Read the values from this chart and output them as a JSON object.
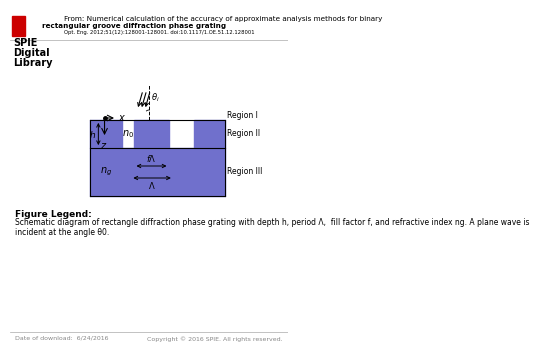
{
  "title_from": "From: Numerical calculation of the accuracy of approximate analysis methods for binary",
  "title_line2": "rectangular groove diffraction phase grating",
  "title_ref": "Opt. Eng. 2012;51(12):128001-128001. doi:10.1117/1.OE.51.12.128001",
  "grating_color": "#7070cc",
  "background_color": "#ffffff",
  "region1_label": "Region I",
  "region2_label": "Region II",
  "region3_label": "Region III",
  "legend_title": "Figure Legend:",
  "legend_text": "Schematic diagram of rectangle diffraction phase grating with depth h, period Λ,  fill factor f, and refractive index ng. A plane wave is\nincident at the angle θ0.",
  "footer_left": "Date of download:  6/24/2016",
  "footer_right": "Copyright © 2016 SPIE. All rights reserved.",
  "spie_line1": "SPIE",
  "spie_line2": "Digital",
  "spie_line3": "Library"
}
